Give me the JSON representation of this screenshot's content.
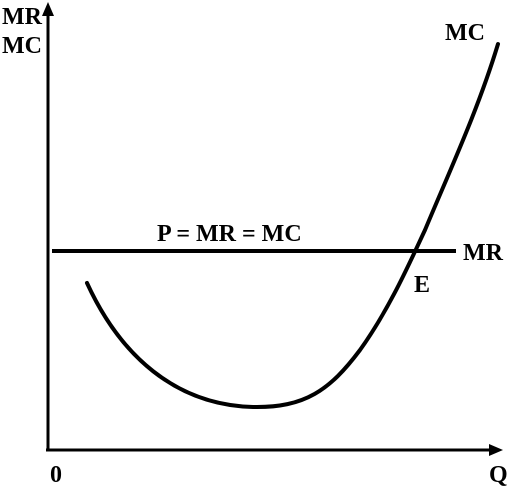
{
  "diagram": {
    "y_axis_label_top": "MR",
    "y_axis_label_bottom": "MC",
    "x_axis_label": "Q",
    "origin_label": "0",
    "mc_curve_label": "MC",
    "mr_line_label": "MR",
    "equilibrium_label": "P = MR = MC",
    "point_label": "E",
    "colors": {
      "ink": "#000000",
      "background": "#ffffff"
    }
  }
}
